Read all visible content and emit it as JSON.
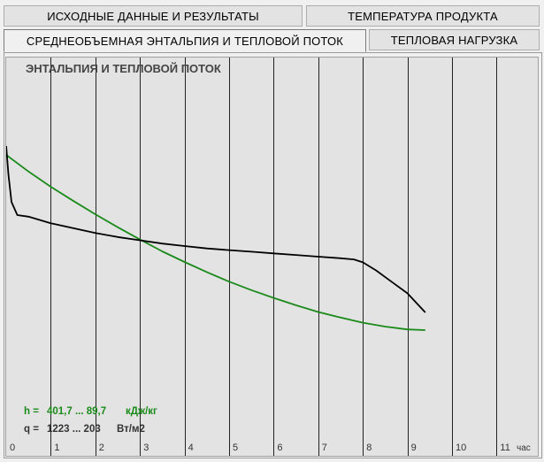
{
  "tabs": [
    {
      "label": "ИСХОДНЫЕ ДАННЫЕ И РЕЗУЛЬТАТЫ",
      "active": false
    },
    {
      "label": "ТЕМПЕРАТУРА ПРОДУКТА",
      "active": false
    },
    {
      "label": "СРЕДНЕОБЪЕМНАЯ ЭНТАЛЬПИЯ И ТЕПЛОВОЙ ПОТОК",
      "active": true
    },
    {
      "label": "ТЕПЛОВАЯ  НАГРУЗКА",
      "active": false
    }
  ],
  "chart_data": {
    "type": "line",
    "title": "ЭНТАЛЬПИЯ И ТЕПЛОВОЙ ПОТОК",
    "x_unit": "час",
    "x_ticks": [
      "0",
      "1",
      "2",
      "3",
      "4",
      "5",
      "6",
      "7",
      "8",
      "9",
      "10",
      "11"
    ],
    "xlim": [
      0,
      11.7
    ],
    "grid": true,
    "colors": {
      "h": "#1a8a1a",
      "q": "#000000",
      "background": "#e3e3e3",
      "grid": "#222222"
    },
    "series": [
      {
        "key": "h",
        "x": [
          0,
          0.5,
          1,
          1.5,
          2,
          2.5,
          3,
          3.5,
          4,
          4.5,
          5,
          5.5,
          6,
          6.5,
          7,
          7.5,
          8,
          8.5,
          9,
          9.4
        ],
        "y": [
          401.7,
          372,
          345,
          320,
          296,
          273,
          251,
          230,
          211,
          193,
          176,
          161,
          147,
          134,
          122,
          112,
          103,
          96,
          91,
          89.7
        ]
      },
      {
        "key": "q",
        "x": [
          0,
          0.05,
          0.12,
          0.25,
          0.5,
          1,
          1.5,
          2,
          2.5,
          3,
          3.5,
          4,
          4.5,
          5,
          5.5,
          6,
          6.5,
          7,
          7.5,
          7.8,
          8,
          8.3,
          8.6,
          9,
          9.4
        ],
        "y": [
          1223,
          1050,
          880,
          800,
          790,
          750,
          720,
          690,
          665,
          645,
          625,
          610,
          595,
          585,
          575,
          565,
          555,
          545,
          535,
          528,
          510,
          460,
          400,
          320,
          203
        ]
      }
    ],
    "legend": [
      {
        "prefix": "h =",
        "range": "401,7 ... 89,7",
        "unit": "кДж/кг",
        "color": "#1a8a1a"
      },
      {
        "prefix": "q =",
        "range": "1223 ... 203",
        "unit": "Вт/м2",
        "color": "#333333"
      }
    ]
  }
}
